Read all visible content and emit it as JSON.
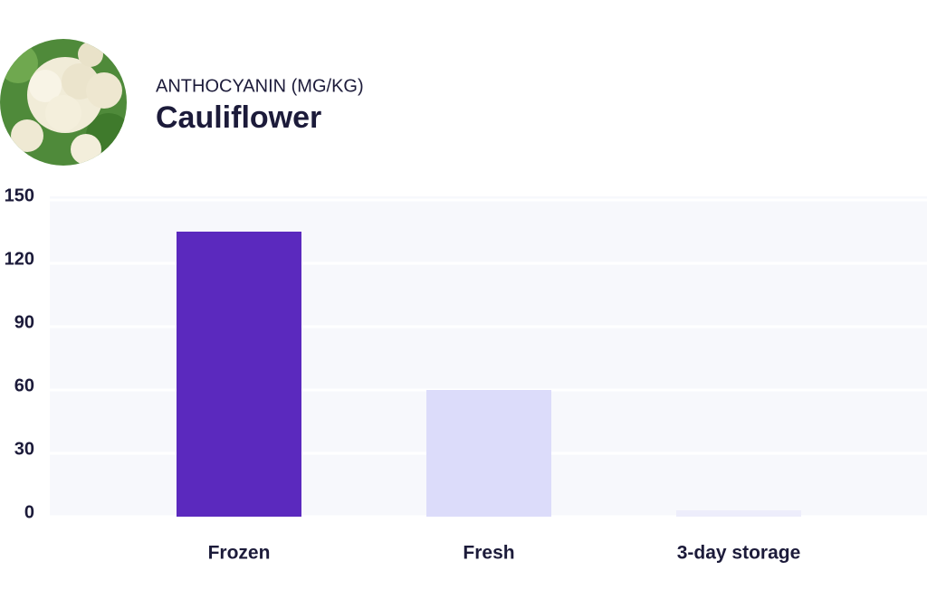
{
  "chart_data": {
    "type": "bar",
    "subtitle": "ANTHOCYANIN (MG/KG)",
    "title": "Cauliflower",
    "categories": [
      "Frozen",
      "Fresh",
      "3-day storage"
    ],
    "values": [
      135,
      60,
      3
    ],
    "colors": [
      "#5b29be",
      "#dcdcfa",
      "#ededfb"
    ],
    "ylim": [
      0,
      150
    ],
    "yticks": [
      0,
      30,
      60,
      90,
      120,
      150
    ],
    "grid": true
  }
}
